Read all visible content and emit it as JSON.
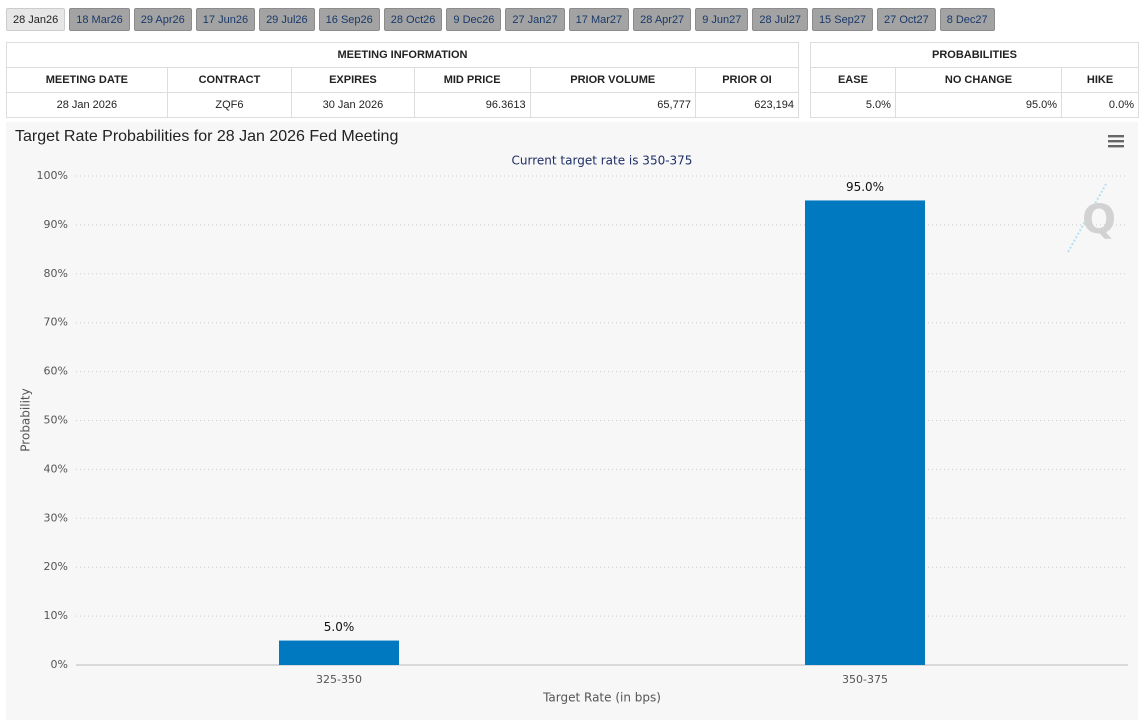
{
  "tabs": [
    "28 Jan26",
    "18 Mar26",
    "29 Apr26",
    "17 Jun26",
    "29 Jul26",
    "16 Sep26",
    "28 Oct26",
    "9 Dec26",
    "27 Jan27",
    "17 Mar27",
    "28 Apr27",
    "9 Jun27",
    "28 Jul27",
    "15 Sep27",
    "27 Oct27",
    "8 Dec27"
  ],
  "meeting_info": {
    "title": "MEETING INFORMATION",
    "columns": [
      "MEETING DATE",
      "CONTRACT",
      "EXPIRES",
      "MID PRICE",
      "PRIOR VOLUME",
      "PRIOR OI"
    ],
    "rows": [
      [
        "28 Jan 2026",
        "ZQF6",
        "30 Jan 2026",
        "96.3613",
        "65,777",
        "623,194"
      ]
    ]
  },
  "probabilities": {
    "title": "PROBABILITIES",
    "columns": [
      "EASE",
      "NO CHANGE",
      "HIKE"
    ],
    "rows": [
      [
        "5.0%",
        "95.0%",
        "0.0%"
      ]
    ]
  },
  "chart_data": {
    "type": "bar",
    "title": "Target Rate Probabilities for 28 Jan 2026 Fed Meeting",
    "subtitle": "Current target rate is 350-375",
    "x_label": "Target Rate (in bps)",
    "y_label": "Probability",
    "categories": [
      "325-350",
      "350-375"
    ],
    "values": [
      5,
      95
    ],
    "value_labels": [
      "5.0%",
      "95.0%"
    ],
    "color": "#0079c1",
    "ylim": [
      0,
      100
    ],
    "yticks": [
      {
        "value": 0,
        "label": "0%"
      },
      {
        "value": 10,
        "label": "10%"
      },
      {
        "value": 20,
        "label": "20%"
      },
      {
        "value": 30,
        "label": "30%"
      },
      {
        "value": 40,
        "label": "40%"
      },
      {
        "value": 50,
        "label": "50%"
      },
      {
        "value": 60,
        "label": "60%"
      },
      {
        "value": 70,
        "label": "70%"
      },
      {
        "value": 80,
        "label": "80%"
      },
      {
        "value": 90,
        "label": "90%"
      },
      {
        "value": 100,
        "label": "100%"
      }
    ],
    "grid": true
  }
}
